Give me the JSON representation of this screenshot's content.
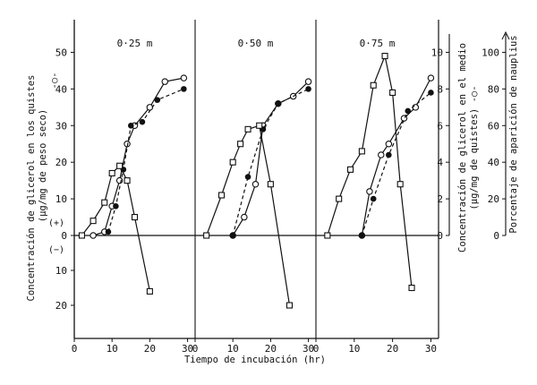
{
  "chart_data": {
    "type": "line",
    "xlabel": "Tiempo de incubación (hr)",
    "left_axis": {
      "title_line1": "Concentración de glicerol en los quistes",
      "title_line2": "(µg/mg de peso seco)",
      "marker_label": "-○-",
      "positive_label": "(+)",
      "negative_label": "(−)",
      "upper_range": [
        0,
        55
      ],
      "lower_range": [
        0,
        30
      ],
      "upper_ticks": [
        "0",
        "10",
        "20",
        "30",
        "40",
        "50"
      ],
      "lower_ticks": [
        "10",
        "20"
      ]
    },
    "middle_axis": {
      "title_line1": "Concentración de glicerol en el medio",
      "title_line2": "(µg/mg de quistes) -○-",
      "range": [
        0,
        11
      ],
      "ticks": [
        "0",
        "2",
        "4",
        "6",
        "8",
        "10"
      ]
    },
    "right_axis": {
      "title": "Porcentaje de aparición de nauplius",
      "range": [
        0,
        110
      ],
      "ticks": [
        "0",
        "20",
        "40",
        "60",
        "80",
        "100"
      ]
    },
    "x_range": [
      0,
      32
    ],
    "x_ticks": [
      "0",
      "10",
      "20",
      "30"
    ],
    "panels": [
      {
        "title": "0·25 m",
        "series": [
          {
            "marker": "open-circle",
            "values": [
              [
                5,
                0
              ],
              [
                8,
                1
              ],
              [
                10,
                8
              ],
              [
                12,
                15
              ],
              [
                14,
                25
              ],
              [
                16,
                30
              ],
              [
                20,
                35
              ],
              [
                24,
                42
              ],
              [
                29,
                43
              ]
            ]
          },
          {
            "marker": "filled-circle",
            "values": [
              [
                9,
                1
              ],
              [
                11,
                8
              ],
              [
                13,
                18
              ],
              [
                15,
                30
              ],
              [
                18,
                31
              ],
              [
                22,
                37
              ],
              [
                29,
                40
              ]
            ]
          },
          {
            "marker": "open-square",
            "values": [
              [
                2,
                0
              ],
              [
                5,
                4
              ],
              [
                8,
                9
              ],
              [
                10,
                17
              ],
              [
                12,
                19
              ],
              [
                14,
                15
              ],
              [
                16,
                5
              ],
              [
                20,
                -16
              ]
            ]
          }
        ]
      },
      {
        "title": "0·50 m",
        "series": [
          {
            "marker": "open-circle",
            "values": [
              [
                10,
                0
              ],
              [
                13,
                5
              ],
              [
                16,
                14
              ],
              [
                18,
                30
              ],
              [
                22,
                36
              ],
              [
                26,
                38
              ],
              [
                30,
                42
              ]
            ]
          },
          {
            "marker": "filled-circle",
            "values": [
              [
                10,
                0
              ],
              [
                14,
                16
              ],
              [
                18,
                29
              ],
              [
                22,
                36
              ],
              [
                30,
                40
              ]
            ]
          },
          {
            "marker": "open-square",
            "values": [
              [
                3,
                0
              ],
              [
                7,
                11
              ],
              [
                10,
                20
              ],
              [
                12,
                25
              ],
              [
                14,
                29
              ],
              [
                17,
                30
              ],
              [
                20,
                14
              ],
              [
                25,
                -20
              ]
            ]
          }
        ]
      },
      {
        "title": "0·75 m",
        "series": [
          {
            "marker": "open-circle",
            "values": [
              [
                12,
                0
              ],
              [
                14,
                12
              ],
              [
                17,
                22
              ],
              [
                19,
                25
              ],
              [
                23,
                32
              ],
              [
                26,
                35
              ],
              [
                30,
                43
              ]
            ]
          },
          {
            "marker": "filled-circle",
            "values": [
              [
                12,
                0
              ],
              [
                15,
                10
              ],
              [
                19,
                22
              ],
              [
                24,
                34
              ],
              [
                30,
                39
              ]
            ]
          },
          {
            "marker": "open-square",
            "values": [
              [
                3,
                0
              ],
              [
                6,
                10
              ],
              [
                9,
                18
              ],
              [
                12,
                23
              ],
              [
                15,
                41
              ],
              [
                18,
                49
              ],
              [
                20,
                39
              ],
              [
                22,
                14
              ],
              [
                25,
                -15
              ]
            ]
          }
        ]
      }
    ]
  }
}
